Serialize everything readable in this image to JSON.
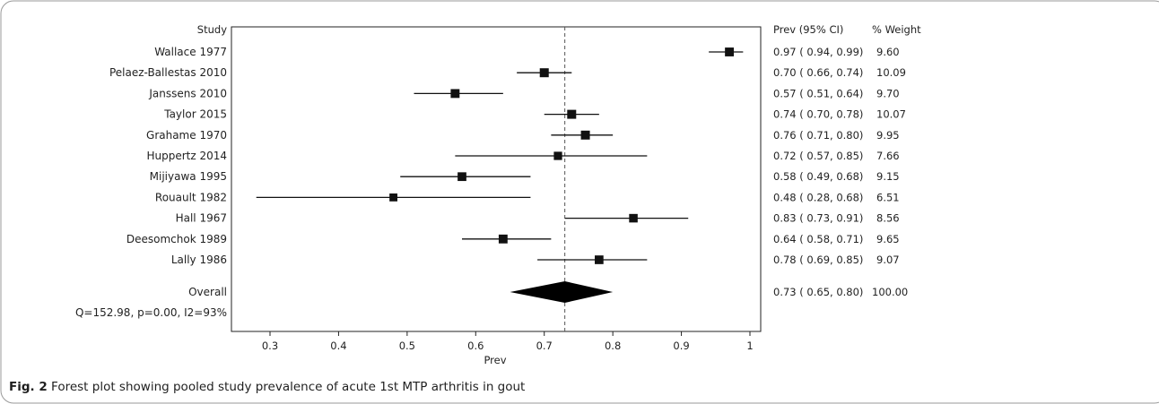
{
  "header": {
    "study_col": "Study",
    "prev_col": "Prev (95% CI)",
    "weight_col": "% Weight"
  },
  "heterogeneity": "Q=152.98, p=0.00, I2=93%",
  "caption": {
    "label": "Fig. 2",
    "text": "Forest plot showing pooled study prevalence of acute 1st MTP arthritis in gout"
  },
  "chart_data": {
    "type": "forest",
    "xlabel": "Prev",
    "xlim": [
      0.25,
      1.0
    ],
    "xticks": [
      "0.3",
      "0.4",
      "0.5",
      "0.6",
      "0.7",
      "0.8",
      "0.9",
      "1"
    ],
    "reference_line": 0.73,
    "studies": [
      {
        "name": "Wallace 1977",
        "est": 0.97,
        "lo": 0.94,
        "hi": 0.99,
        "weight": 9.6,
        "ci_text": "0.97 ( 0.94, 0.99)",
        "weight_text": "9.60"
      },
      {
        "name": "Pelaez-Ballestas 2010",
        "est": 0.7,
        "lo": 0.66,
        "hi": 0.74,
        "weight": 10.09,
        "ci_text": "0.70 ( 0.66, 0.74)",
        "weight_text": "10.09"
      },
      {
        "name": "Janssens 2010",
        "est": 0.57,
        "lo": 0.51,
        "hi": 0.64,
        "weight": 9.7,
        "ci_text": "0.57 ( 0.51, 0.64)",
        "weight_text": "9.70"
      },
      {
        "name": "Taylor 2015",
        "est": 0.74,
        "lo": 0.7,
        "hi": 0.78,
        "weight": 10.07,
        "ci_text": "0.74 ( 0.70, 0.78)",
        "weight_text": "10.07"
      },
      {
        "name": "Grahame 1970",
        "est": 0.76,
        "lo": 0.71,
        "hi": 0.8,
        "weight": 9.95,
        "ci_text": "0.76 ( 0.71, 0.80)",
        "weight_text": "9.95"
      },
      {
        "name": "Huppertz 2014",
        "est": 0.72,
        "lo": 0.57,
        "hi": 0.85,
        "weight": 7.66,
        "ci_text": "0.72 ( 0.57, 0.85)",
        "weight_text": "7.66"
      },
      {
        "name": "Mijiyawa 1995",
        "est": 0.58,
        "lo": 0.49,
        "hi": 0.68,
        "weight": 9.15,
        "ci_text": "0.58 ( 0.49, 0.68)",
        "weight_text": "9.15"
      },
      {
        "name": "Rouault 1982",
        "est": 0.48,
        "lo": 0.28,
        "hi": 0.68,
        "weight": 6.51,
        "ci_text": "0.48 ( 0.28, 0.68)",
        "weight_text": "6.51"
      },
      {
        "name": "Hall 1967",
        "est": 0.83,
        "lo": 0.73,
        "hi": 0.91,
        "weight": 8.56,
        "ci_text": "0.83 ( 0.73, 0.91)",
        "weight_text": "8.56"
      },
      {
        "name": "Deesomchok 1989",
        "est": 0.64,
        "lo": 0.58,
        "hi": 0.71,
        "weight": 9.65,
        "ci_text": "0.64 ( 0.58, 0.71)",
        "weight_text": "9.65"
      },
      {
        "name": "Lally 1986",
        "est": 0.78,
        "lo": 0.69,
        "hi": 0.85,
        "weight": 9.07,
        "ci_text": "0.78 ( 0.69, 0.85)",
        "weight_text": "9.07"
      }
    ],
    "overall": {
      "name": "Overall",
      "est": 0.73,
      "lo": 0.65,
      "hi": 0.8,
      "weight": 100.0,
      "ci_text": "0.73 ( 0.65, 0.80)",
      "weight_text": "100.00"
    }
  }
}
